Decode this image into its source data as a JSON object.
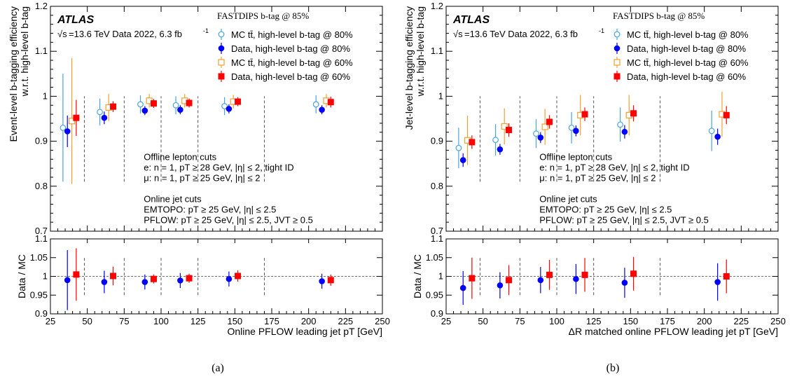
{
  "chart_data": [
    {
      "type": "scatter",
      "panel_label": "(a)",
      "experiment": "ATLAS",
      "energy_label": "=13.6 TeV Data 2022, 6.3 fb",
      "energy_sup": "-1",
      "legend_header": "FASTDIPS b-tag @ 85%",
      "ylabel_top": "Event-level b-tagging efficiency",
      "ylabel_top2": "w.r.t. high-level b-tag",
      "ylabel_ratio": "Data / MC",
      "xlabel": "Online PFLOW leading jet pT [GeV]",
      "xlim": [
        25,
        250
      ],
      "ylim": [
        0.7,
        1.2
      ],
      "ratio_ylim": [
        0.9,
        1.1
      ],
      "x_ticks": [
        "25",
        "50",
        "75",
        "100",
        "125",
        "150",
        "175",
        "200",
        "225",
        "250"
      ],
      "y_ticks": [
        "0.7",
        "0.8",
        "0.9",
        "1",
        "1.1",
        "1.2"
      ],
      "ratio_y_ticks": [
        "0.9",
        "0.95",
        "1",
        "1.05",
        "1.1"
      ],
      "bin_edges": [
        48,
        75,
        100,
        125,
        170
      ],
      "series": [
        {
          "name": "MC tt̄, high-level b-tag @ 80%",
          "color": "#4aa3df",
          "marker": "open-circle",
          "x": [
            33.5,
            58.5,
            86,
            110,
            143,
            205
          ],
          "y": [
            0.93,
            0.965,
            0.982,
            0.98,
            0.978,
            0.982
          ],
          "err": [
            0.12,
            0.03,
            0.02,
            0.02,
            0.02,
            0.02
          ]
        },
        {
          "name": "Data, high-level b-tag @ 80%",
          "color": "#0000ff",
          "marker": "filled-circle",
          "x": [
            36.5,
            61.5,
            89,
            113,
            146,
            209
          ],
          "y": [
            0.922,
            0.952,
            0.968,
            0.97,
            0.972,
            0.97
          ],
          "err": [
            0.035,
            0.014,
            0.01,
            0.01,
            0.01,
            0.01
          ]
        },
        {
          "name": "MC tt̄, high-level b-tag @ 60%",
          "color": "#f0a030",
          "marker": "open-square",
          "x": [
            39.5,
            64.5,
            92,
            116,
            149,
            212
          ],
          "y": [
            0.945,
            0.975,
            0.99,
            0.99,
            0.988,
            0.99
          ],
          "err": [
            0.14,
            0.03,
            0.015,
            0.015,
            0.015,
            0.015
          ]
        },
        {
          "name": "Data, high-level b-tag @ 60%",
          "color": "#ff0000",
          "marker": "filled-square",
          "x": [
            42.5,
            67.5,
            95,
            119,
            152,
            215
          ],
          "y": [
            0.952,
            0.977,
            0.984,
            0.985,
            0.988,
            0.987
          ],
          "err": [
            0.04,
            0.012,
            0.01,
            0.01,
            0.01,
            0.012
          ]
        }
      ],
      "ratio_series": [
        {
          "color": "#0000ff",
          "marker": "filled-circle",
          "x": [
            36.5,
            61.5,
            89,
            113,
            146,
            209
          ],
          "y": [
            0.99,
            0.985,
            0.985,
            0.989,
            0.993,
            0.987
          ],
          "err": [
            0.08,
            0.03,
            0.02,
            0.02,
            0.02,
            0.02
          ]
        },
        {
          "color": "#ff0000",
          "marker": "filled-square",
          "x": [
            42.5,
            67.5,
            95,
            119,
            152,
            215
          ],
          "y": [
            1.005,
            1.001,
            0.993,
            0.995,
            1.001,
            0.99
          ],
          "err": [
            0.07,
            0.025,
            0.012,
            0.012,
            0.015,
            0.015
          ]
        }
      ],
      "cuts": [
        "Offline lepton cuts",
        "e: n = 1, pT ≥ 28 GeV, |η| ≤ 2, tight ID",
        "μ: n = 1, pT ≥ 25 GeV, |η| ≤ 2",
        "",
        "Online jet cuts",
        "EMTOPO: pT ≥ 25 GeV, |η| ≤ 2.5",
        "PFLOW: pT ≥ 25 GeV, |η| ≤ 2.5, JVT ≥ 0.5"
      ]
    },
    {
      "type": "scatter",
      "panel_label": "(b)",
      "experiment": "ATLAS",
      "energy_label": "=13.6 TeV Data 2022, 6.3 fb",
      "energy_sup": "-1",
      "legend_header": "FASTDIPS b-tag @ 85%",
      "ylabel_top": "Jet-level b-tagging efficiency",
      "ylabel_top2": "w.r.t. high-level b-tag",
      "ylabel_ratio": "Data / MC",
      "xlabel": "ΔR matched online PFLOW leading jet pT [GeV]",
      "xlim": [
        25,
        250
      ],
      "ylim": [
        0.7,
        1.2
      ],
      "ratio_ylim": [
        0.9,
        1.1
      ],
      "x_ticks": [
        "25",
        "50",
        "75",
        "100",
        "125",
        "150",
        "175",
        "200",
        "225",
        "250"
      ],
      "y_ticks": [
        "0.7",
        "0.8",
        "0.9",
        "1",
        "1.1",
        "1.2"
      ],
      "ratio_y_ticks": [
        "0.9",
        "0.95",
        "1",
        "1.05",
        "1.1"
      ],
      "bin_edges": [
        48,
        75,
        100,
        125,
        170
      ],
      "series": [
        {
          "name": "MC tt̄, high-level b-tag @ 80%",
          "color": "#4aa3df",
          "marker": "open-circle",
          "x": [
            33.5,
            58.5,
            86,
            110,
            143,
            205
          ],
          "y": [
            0.885,
            0.903,
            0.917,
            0.93,
            0.937,
            0.923
          ],
          "err": [
            0.045,
            0.035,
            0.032,
            0.035,
            0.038,
            0.045
          ]
        },
        {
          "name": "Data, high-level b-tag @ 80%",
          "color": "#0000ff",
          "marker": "filled-circle",
          "x": [
            36.5,
            61.5,
            89,
            113,
            146,
            209
          ],
          "y": [
            0.858,
            0.882,
            0.908,
            0.923,
            0.921,
            0.91
          ],
          "err": [
            0.015,
            0.012,
            0.012,
            0.012,
            0.015,
            0.018
          ]
        },
        {
          "name": "MC tt̄, high-level b-tag @ 60%",
          "color": "#f0a030",
          "marker": "open-square",
          "x": [
            39.5,
            64.5,
            92,
            116,
            149,
            212
          ],
          "y": [
            0.902,
            0.933,
            0.932,
            0.958,
            0.958,
            0.96
          ],
          "err": [
            0.055,
            0.04,
            0.04,
            0.045,
            0.045,
            0.05
          ]
        },
        {
          "name": "Data, high-level b-tag @ 60%",
          "color": "#ff0000",
          "marker": "filled-square",
          "x": [
            42.5,
            67.5,
            95,
            119,
            152,
            215
          ],
          "y": [
            0.898,
            0.925,
            0.943,
            0.96,
            0.962,
            0.958
          ],
          "err": [
            0.015,
            0.015,
            0.015,
            0.015,
            0.018,
            0.02
          ]
        }
      ],
      "ratio_series": [
        {
          "color": "#0000ff",
          "marker": "filled-circle",
          "x": [
            36.5,
            61.5,
            89,
            113,
            146,
            209
          ],
          "y": [
            0.969,
            0.976,
            0.99,
            0.993,
            0.983,
            0.985
          ],
          "err": [
            0.045,
            0.035,
            0.035,
            0.04,
            0.04,
            0.05
          ]
        },
        {
          "color": "#ff0000",
          "marker": "filled-square",
          "x": [
            42.5,
            67.5,
            95,
            119,
            152,
            215
          ],
          "y": [
            0.995,
            0.99,
            1.004,
            1.004,
            1.007,
            1.0
          ],
          "err": [
            0.055,
            0.04,
            0.04,
            0.045,
            0.045,
            0.045
          ]
        }
      ],
      "cuts": [
        "Offline lepton cuts",
        "e: n = 1, pT ≥ 28 GeV, |η| ≤ 2, tight ID",
        "μ: n = 1, pT ≥ 25 GeV, |η| ≤ 2",
        "",
        "Online jet cuts",
        "EMTOPO: pT ≥ 25 GeV, |η| ≤ 2.5",
        "PFLOW: pT ≥ 25 GeV, |η| ≤ 2.5, JVT ≥ 0.5"
      ]
    }
  ]
}
